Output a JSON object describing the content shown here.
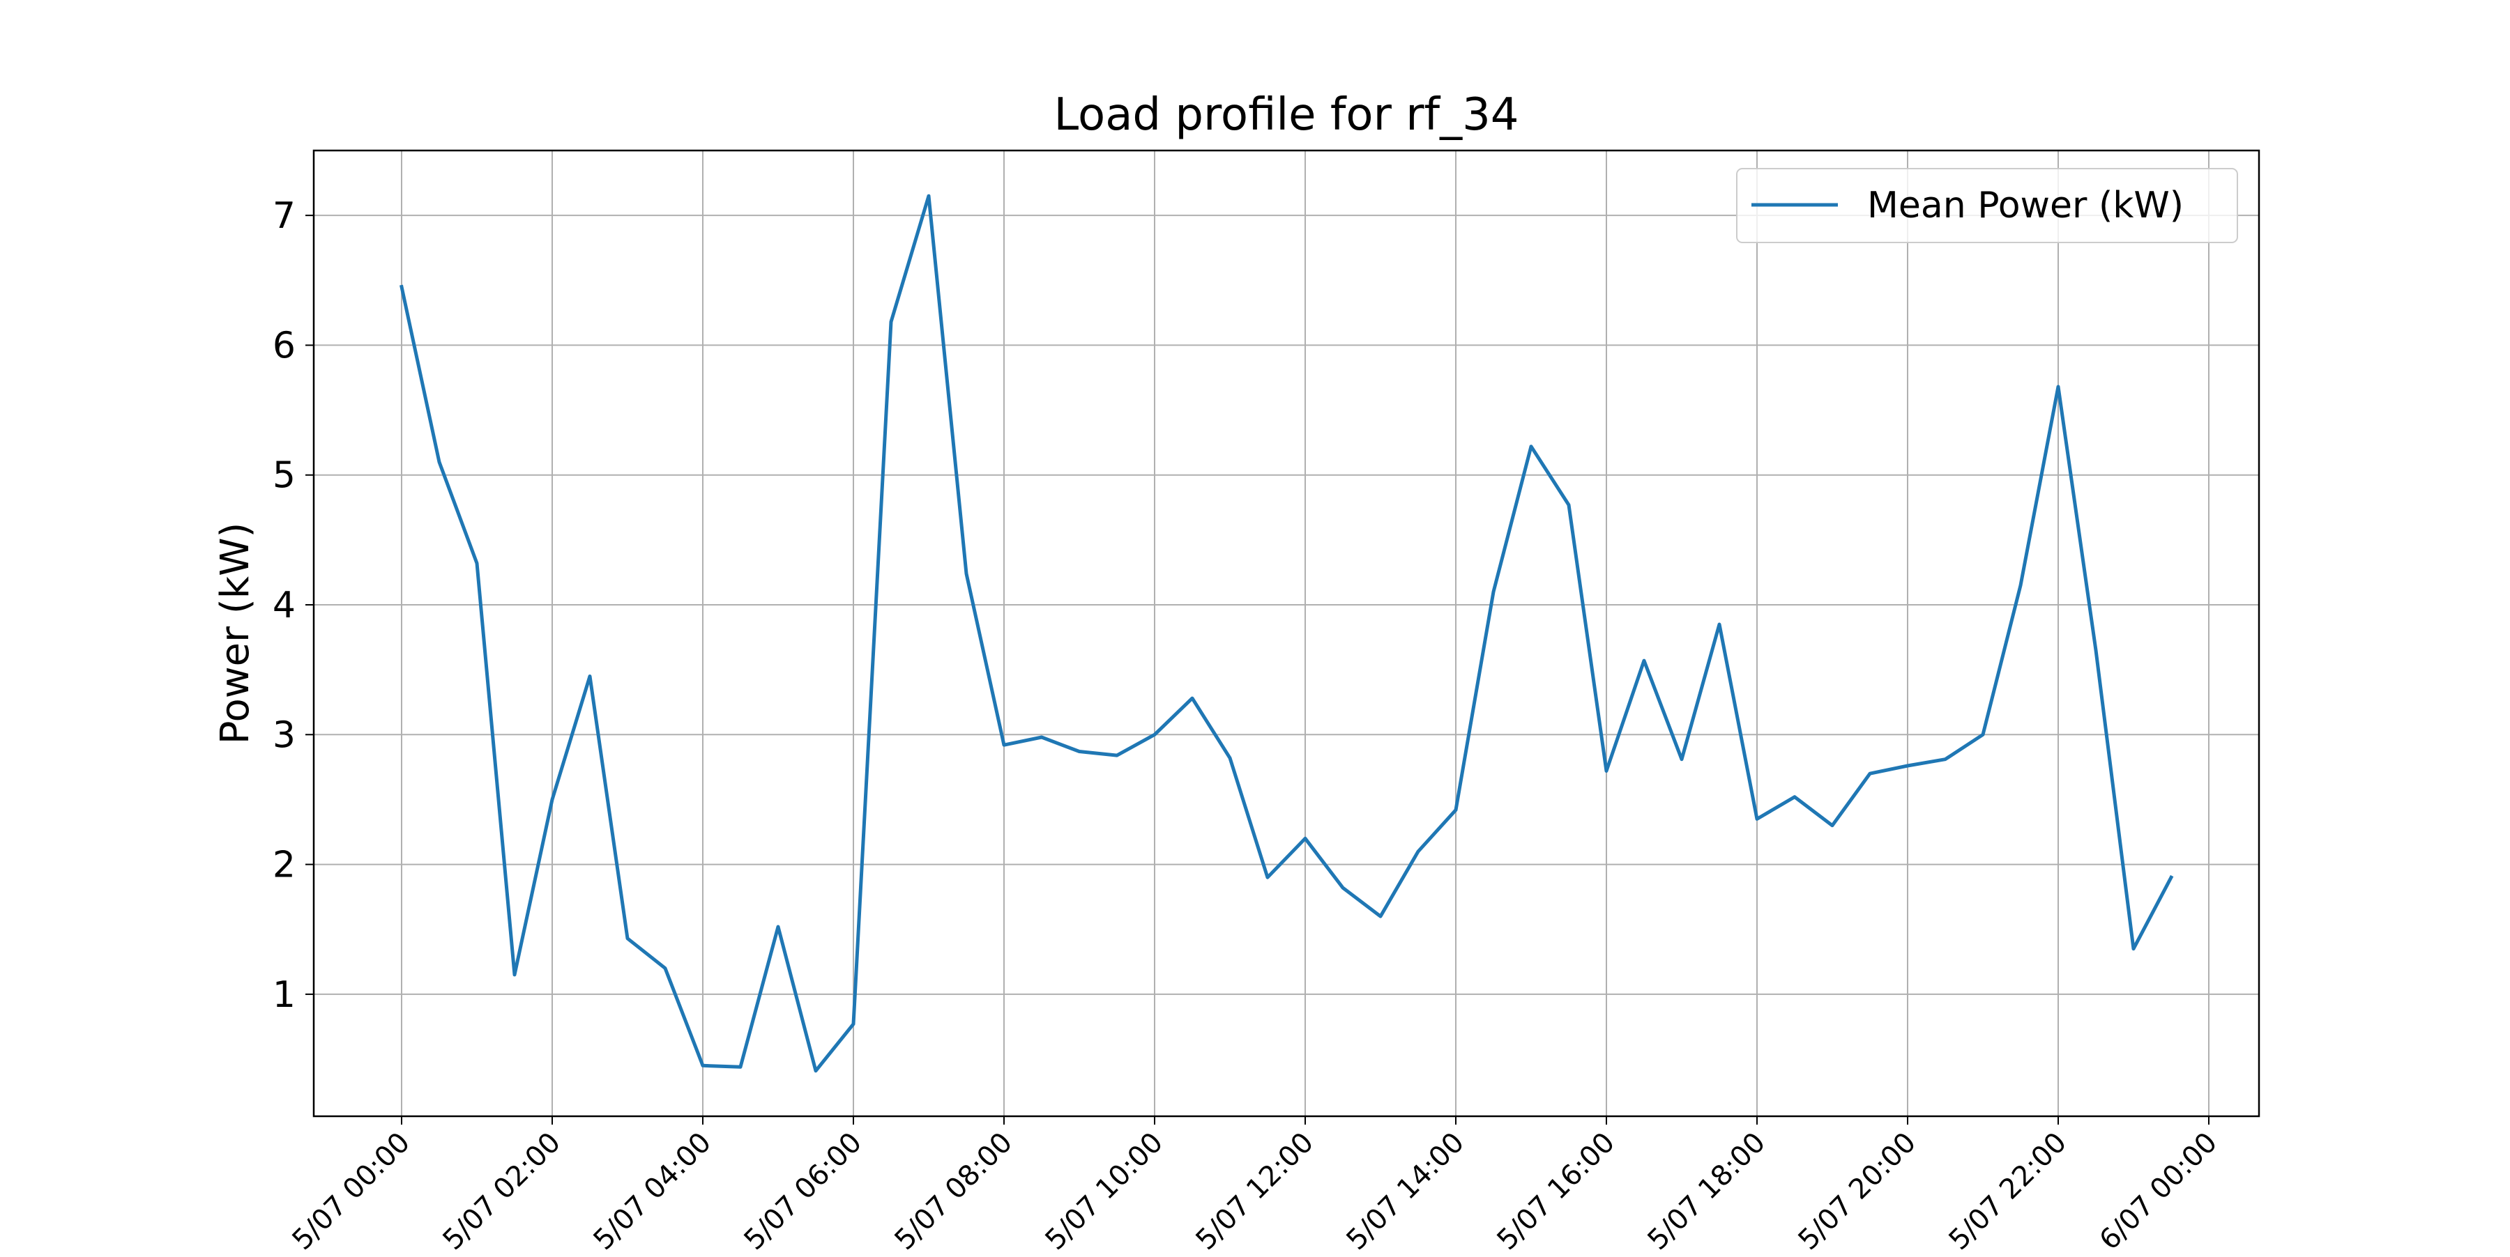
{
  "chart_data": {
    "type": "line",
    "title": "Load profile for rf_34",
    "xlabel": "",
    "ylabel": "Power (kW)",
    "x_tick_labels": [
      "5/07 00:00",
      "5/07 02:00",
      "5/07 04:00",
      "5/07 06:00",
      "5/07 08:00",
      "5/07 10:00",
      "5/07 12:00",
      "5/07 14:00",
      "5/07 16:00",
      "5/07 18:00",
      "5/07 20:00",
      "5/07 22:00",
      "6/07 00:00"
    ],
    "y_ticks": [
      1,
      2,
      3,
      4,
      5,
      6,
      7
    ],
    "xlim": [
      "5/07 -01:10",
      "6/07 00:40"
    ],
    "ylim": [
      0.06,
      7.5
    ],
    "grid": true,
    "legend": "top-right",
    "series": [
      {
        "name": "Mean Power (kW)",
        "color": "#1f77b4",
        "x": [
          "5/07 00:00",
          "5/07 00:30",
          "5/07 01:00",
          "5/07 01:30",
          "5/07 02:00",
          "5/07 02:30",
          "5/07 03:00",
          "5/07 03:30",
          "5/07 04:00",
          "5/07 04:30",
          "5/07 05:00",
          "5/07 05:30",
          "5/07 06:00",
          "5/07 06:30",
          "5/07 07:00",
          "5/07 07:30",
          "5/07 08:00",
          "5/07 08:30",
          "5/07 09:00",
          "5/07 09:30",
          "5/07 10:00",
          "5/07 10:30",
          "5/07 11:00",
          "5/07 11:30",
          "5/07 12:00",
          "5/07 12:30",
          "5/07 13:00",
          "5/07 13:30",
          "5/07 14:00",
          "5/07 14:30",
          "5/07 15:00",
          "5/07 15:30",
          "5/07 16:00",
          "5/07 16:30",
          "5/07 17:00",
          "5/07 17:30",
          "5/07 18:00",
          "5/07 18:30",
          "5/07 19:00",
          "5/07 19:30",
          "5/07 20:00",
          "5/07 20:30",
          "5/07 21:00",
          "5/07 21:30",
          "5/07 22:00",
          "5/07 22:30",
          "5/07 23:00",
          "5/07 23:30"
        ],
        "y": [
          6.45,
          5.1,
          4.32,
          1.15,
          2.5,
          3.45,
          1.43,
          1.2,
          0.45,
          0.44,
          1.52,
          0.41,
          0.77,
          6.18,
          7.15,
          4.24,
          2.92,
          2.98,
          2.87,
          2.84,
          3.0,
          3.28,
          2.82,
          1.9,
          2.2,
          1.82,
          1.6,
          2.1,
          2.42,
          4.1,
          5.22,
          4.77,
          2.72,
          3.57,
          2.81,
          3.85,
          2.35,
          2.52,
          2.3,
          2.7,
          2.76,
          2.81,
          3.0,
          4.15,
          5.68,
          3.65,
          1.35,
          1.9
        ]
      }
    ]
  }
}
